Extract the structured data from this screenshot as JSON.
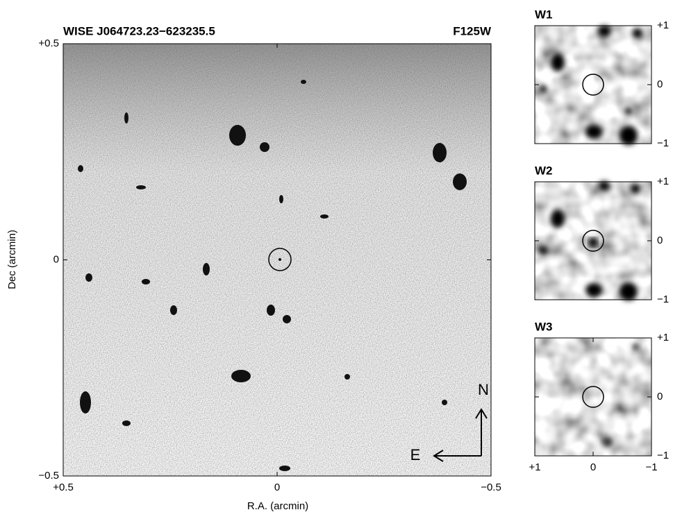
{
  "chart_data": [
    {
      "type": "image",
      "title": "WISE J064723.23−623235.5",
      "subtitle": "F125W",
      "xlabel": "R.A. (arcmin)",
      "ylabel": "Dec (arcmin)",
      "xlim": [
        0.5,
        -0.5
      ],
      "ylim": [
        -0.5,
        0.5
      ],
      "xticks": [
        {
          "value": 0.5,
          "label": "+0.5"
        },
        0,
        {
          "value": -0.5,
          "label": "−0.5"
        }
      ],
      "yticks": [
        {
          "value": -0.5,
          "label": "−0.5"
        },
        0,
        {
          "value": 0.5,
          "label": "+0.5"
        }
      ],
      "annotations": [
        "N",
        "E"
      ]
    },
    {
      "type": "image",
      "title": "W1",
      "xlim": [
        1,
        -1
      ],
      "ylim": [
        -1,
        1
      ],
      "yticks": [
        {
          "value": -1,
          "label": "−1"
        },
        0,
        {
          "value": 1,
          "label": "+1"
        }
      ]
    },
    {
      "type": "image",
      "title": "W2",
      "xlim": [
        1,
        -1
      ],
      "ylim": [
        -1,
        1
      ],
      "yticks": [
        {
          "value": -1,
          "label": "−1"
        },
        0,
        {
          "value": 1,
          "label": "+1"
        }
      ]
    },
    {
      "type": "image",
      "title": "W3",
      "xlim": [
        1,
        -1
      ],
      "ylim": [
        -1,
        1
      ],
      "xticks": [
        {
          "value": 1,
          "label": "+1"
        },
        0,
        {
          "value": -1,
          "label": "−1"
        }
      ],
      "yticks": [
        {
          "value": -1,
          "label": "−1"
        },
        0,
        {
          "value": 1,
          "label": "+1"
        }
      ]
    }
  ]
}
